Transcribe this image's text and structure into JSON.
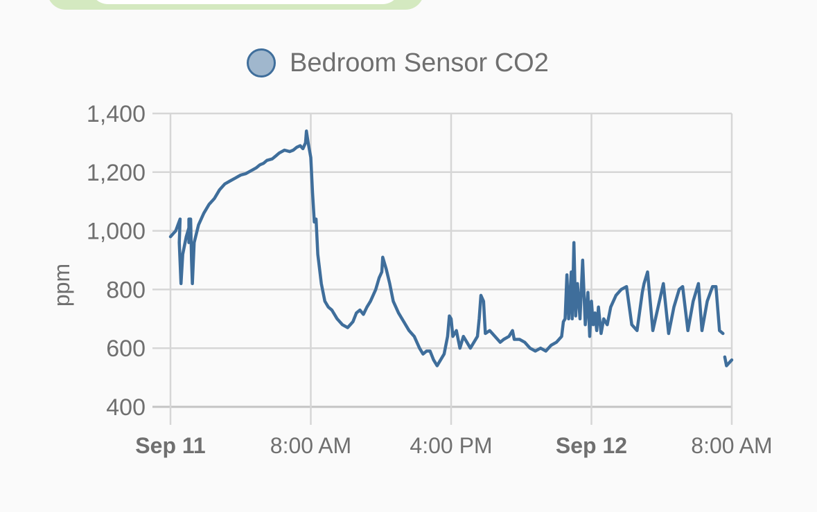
{
  "legend": {
    "label": "Bedroom Sensor CO2",
    "color": "#3f6e9b",
    "fill": "#a0b7cd"
  },
  "axes": {
    "ylabel": "ppm",
    "yticks": [
      "1,400",
      "1,200",
      "1,000",
      "800",
      "600",
      "400"
    ],
    "xticks": [
      {
        "label": "Sep 11",
        "bold": true
      },
      {
        "label": "8:00 AM",
        "bold": false
      },
      {
        "label": "4:00 PM",
        "bold": false
      },
      {
        "label": "Sep 12",
        "bold": true
      },
      {
        "label": "8:00 AM",
        "bold": false
      }
    ]
  },
  "chart_data": {
    "type": "line",
    "title": "",
    "xlabel": "",
    "ylabel": "ppm",
    "ylim": [
      400,
      1400
    ],
    "x_unit": "hours since Sep 11 00:00",
    "xlim": [
      0,
      32
    ],
    "x_tick_labels": [
      "Sep 11",
      "8:00 AM",
      "4:00 PM",
      "Sep 12",
      "8:00 AM"
    ],
    "y_tick_labels": [
      "400",
      "600",
      "800",
      "1,000",
      "1,200",
      "1,400"
    ],
    "grid": true,
    "legend_position": "top",
    "series": [
      {
        "name": "Bedroom Sensor CO2",
        "color": "#3f6e9b",
        "points": [
          [
            0.0,
            980
          ],
          [
            0.3,
            1000
          ],
          [
            0.55,
            1040
          ],
          [
            0.5,
            960
          ],
          [
            0.6,
            820
          ],
          [
            0.7,
            920
          ],
          [
            0.9,
            980
          ],
          [
            1.1,
            1020
          ],
          [
            1.1,
            1000
          ],
          [
            1.05,
            960
          ],
          [
            1.05,
            1040
          ],
          [
            1.15,
            1040
          ],
          [
            1.2,
            900
          ],
          [
            1.25,
            820
          ],
          [
            1.35,
            960
          ],
          [
            1.6,
            1020
          ],
          [
            1.9,
            1060
          ],
          [
            2.2,
            1090
          ],
          [
            2.5,
            1110
          ],
          [
            2.8,
            1140
          ],
          [
            3.1,
            1160
          ],
          [
            3.4,
            1170
          ],
          [
            3.7,
            1180
          ],
          [
            4.0,
            1190
          ],
          [
            4.3,
            1195
          ],
          [
            4.6,
            1205
          ],
          [
            4.9,
            1215
          ],
          [
            5.1,
            1225
          ],
          [
            5.3,
            1230
          ],
          [
            5.5,
            1240
          ],
          [
            5.8,
            1245
          ],
          [
            6.0,
            1255
          ],
          [
            6.2,
            1265
          ],
          [
            6.5,
            1275
          ],
          [
            6.8,
            1270
          ],
          [
            7.0,
            1275
          ],
          [
            7.2,
            1285
          ],
          [
            7.4,
            1290
          ],
          [
            7.55,
            1280
          ],
          [
            7.7,
            1300
          ],
          [
            7.75,
            1340
          ],
          [
            7.85,
            1300
          ],
          [
            8.0,
            1250
          ],
          [
            8.1,
            1130
          ],
          [
            8.2,
            1030
          ],
          [
            8.3,
            1040
          ],
          [
            8.4,
            920
          ],
          [
            8.6,
            820
          ],
          [
            8.8,
            760
          ],
          [
            9.0,
            740
          ],
          [
            9.2,
            730
          ],
          [
            9.5,
            700
          ],
          [
            9.8,
            680
          ],
          [
            10.1,
            670
          ],
          [
            10.4,
            690
          ],
          [
            10.6,
            720
          ],
          [
            10.8,
            730
          ],
          [
            11.0,
            715
          ],
          [
            11.2,
            740
          ],
          [
            11.4,
            760
          ],
          [
            11.7,
            800
          ],
          [
            11.9,
            840
          ],
          [
            12.05,
            860
          ],
          [
            12.1,
            910
          ],
          [
            12.3,
            870
          ],
          [
            12.5,
            820
          ],
          [
            12.7,
            760
          ],
          [
            13.0,
            720
          ],
          [
            13.3,
            690
          ],
          [
            13.6,
            660
          ],
          [
            13.9,
            640
          ],
          [
            14.2,
            600
          ],
          [
            14.4,
            580
          ],
          [
            14.6,
            590
          ],
          [
            14.8,
            590
          ],
          [
            15.0,
            560
          ],
          [
            15.2,
            540
          ],
          [
            15.4,
            560
          ],
          [
            15.6,
            580
          ],
          [
            15.8,
            640
          ],
          [
            15.9,
            710
          ],
          [
            16.0,
            700
          ],
          [
            16.1,
            640
          ],
          [
            16.3,
            660
          ],
          [
            16.5,
            600
          ],
          [
            16.7,
            640
          ],
          [
            16.9,
            620
          ],
          [
            17.1,
            600
          ],
          [
            17.3,
            620
          ],
          [
            17.5,
            640
          ],
          [
            17.6,
            700
          ],
          [
            17.7,
            780
          ],
          [
            17.85,
            760
          ],
          [
            17.95,
            650
          ],
          [
            18.2,
            660
          ],
          [
            18.5,
            640
          ],
          [
            18.8,
            620
          ],
          [
            19.0,
            630
          ],
          [
            19.3,
            640
          ],
          [
            19.5,
            660
          ],
          [
            19.6,
            630
          ],
          [
            19.9,
            630
          ],
          [
            20.2,
            620
          ],
          [
            20.5,
            600
          ],
          [
            20.8,
            590
          ],
          [
            21.1,
            600
          ],
          [
            21.4,
            590
          ],
          [
            21.7,
            610
          ],
          [
            22.0,
            620
          ],
          [
            22.3,
            640
          ],
          [
            22.4,
            690
          ],
          [
            22.5,
            700
          ],
          [
            22.6,
            850
          ],
          [
            22.7,
            700
          ],
          [
            22.85,
            860
          ],
          [
            22.9,
            700
          ],
          [
            23.0,
            960
          ],
          [
            23.1,
            710
          ],
          [
            23.2,
            820
          ],
          [
            23.35,
            700
          ],
          [
            23.5,
            900
          ],
          [
            23.65,
            680
          ],
          [
            23.8,
            790
          ],
          [
            23.9,
            640
          ],
          [
            24.0,
            760
          ],
          [
            24.1,
            680
          ],
          [
            24.2,
            720
          ],
          [
            24.3,
            660
          ],
          [
            24.4,
            740
          ],
          [
            24.55,
            650
          ],
          [
            24.7,
            700
          ],
          [
            24.9,
            680
          ],
          [
            25.1,
            740
          ],
          [
            25.4,
            780
          ],
          [
            25.7,
            800
          ],
          [
            26.0,
            810
          ],
          [
            26.3,
            680
          ],
          [
            26.6,
            660
          ],
          [
            26.9,
            790
          ],
          [
            27.0,
            820
          ],
          [
            27.2,
            860
          ],
          [
            27.5,
            660
          ],
          [
            27.8,
            740
          ],
          [
            28.1,
            820
          ],
          [
            28.4,
            650
          ],
          [
            28.7,
            740
          ],
          [
            29.0,
            800
          ],
          [
            29.2,
            810
          ],
          [
            29.5,
            660
          ],
          [
            29.8,
            760
          ],
          [
            30.1,
            820
          ],
          [
            30.3,
            660
          ],
          [
            30.6,
            760
          ],
          [
            30.9,
            810
          ],
          [
            31.1,
            810
          ],
          [
            31.3,
            660
          ],
          [
            31.5,
            650
          ],
          null,
          [
            31.6,
            570
          ],
          [
            31.7,
            540
          ],
          [
            31.85,
            550
          ],
          [
            32.0,
            560
          ]
        ]
      }
    ]
  }
}
